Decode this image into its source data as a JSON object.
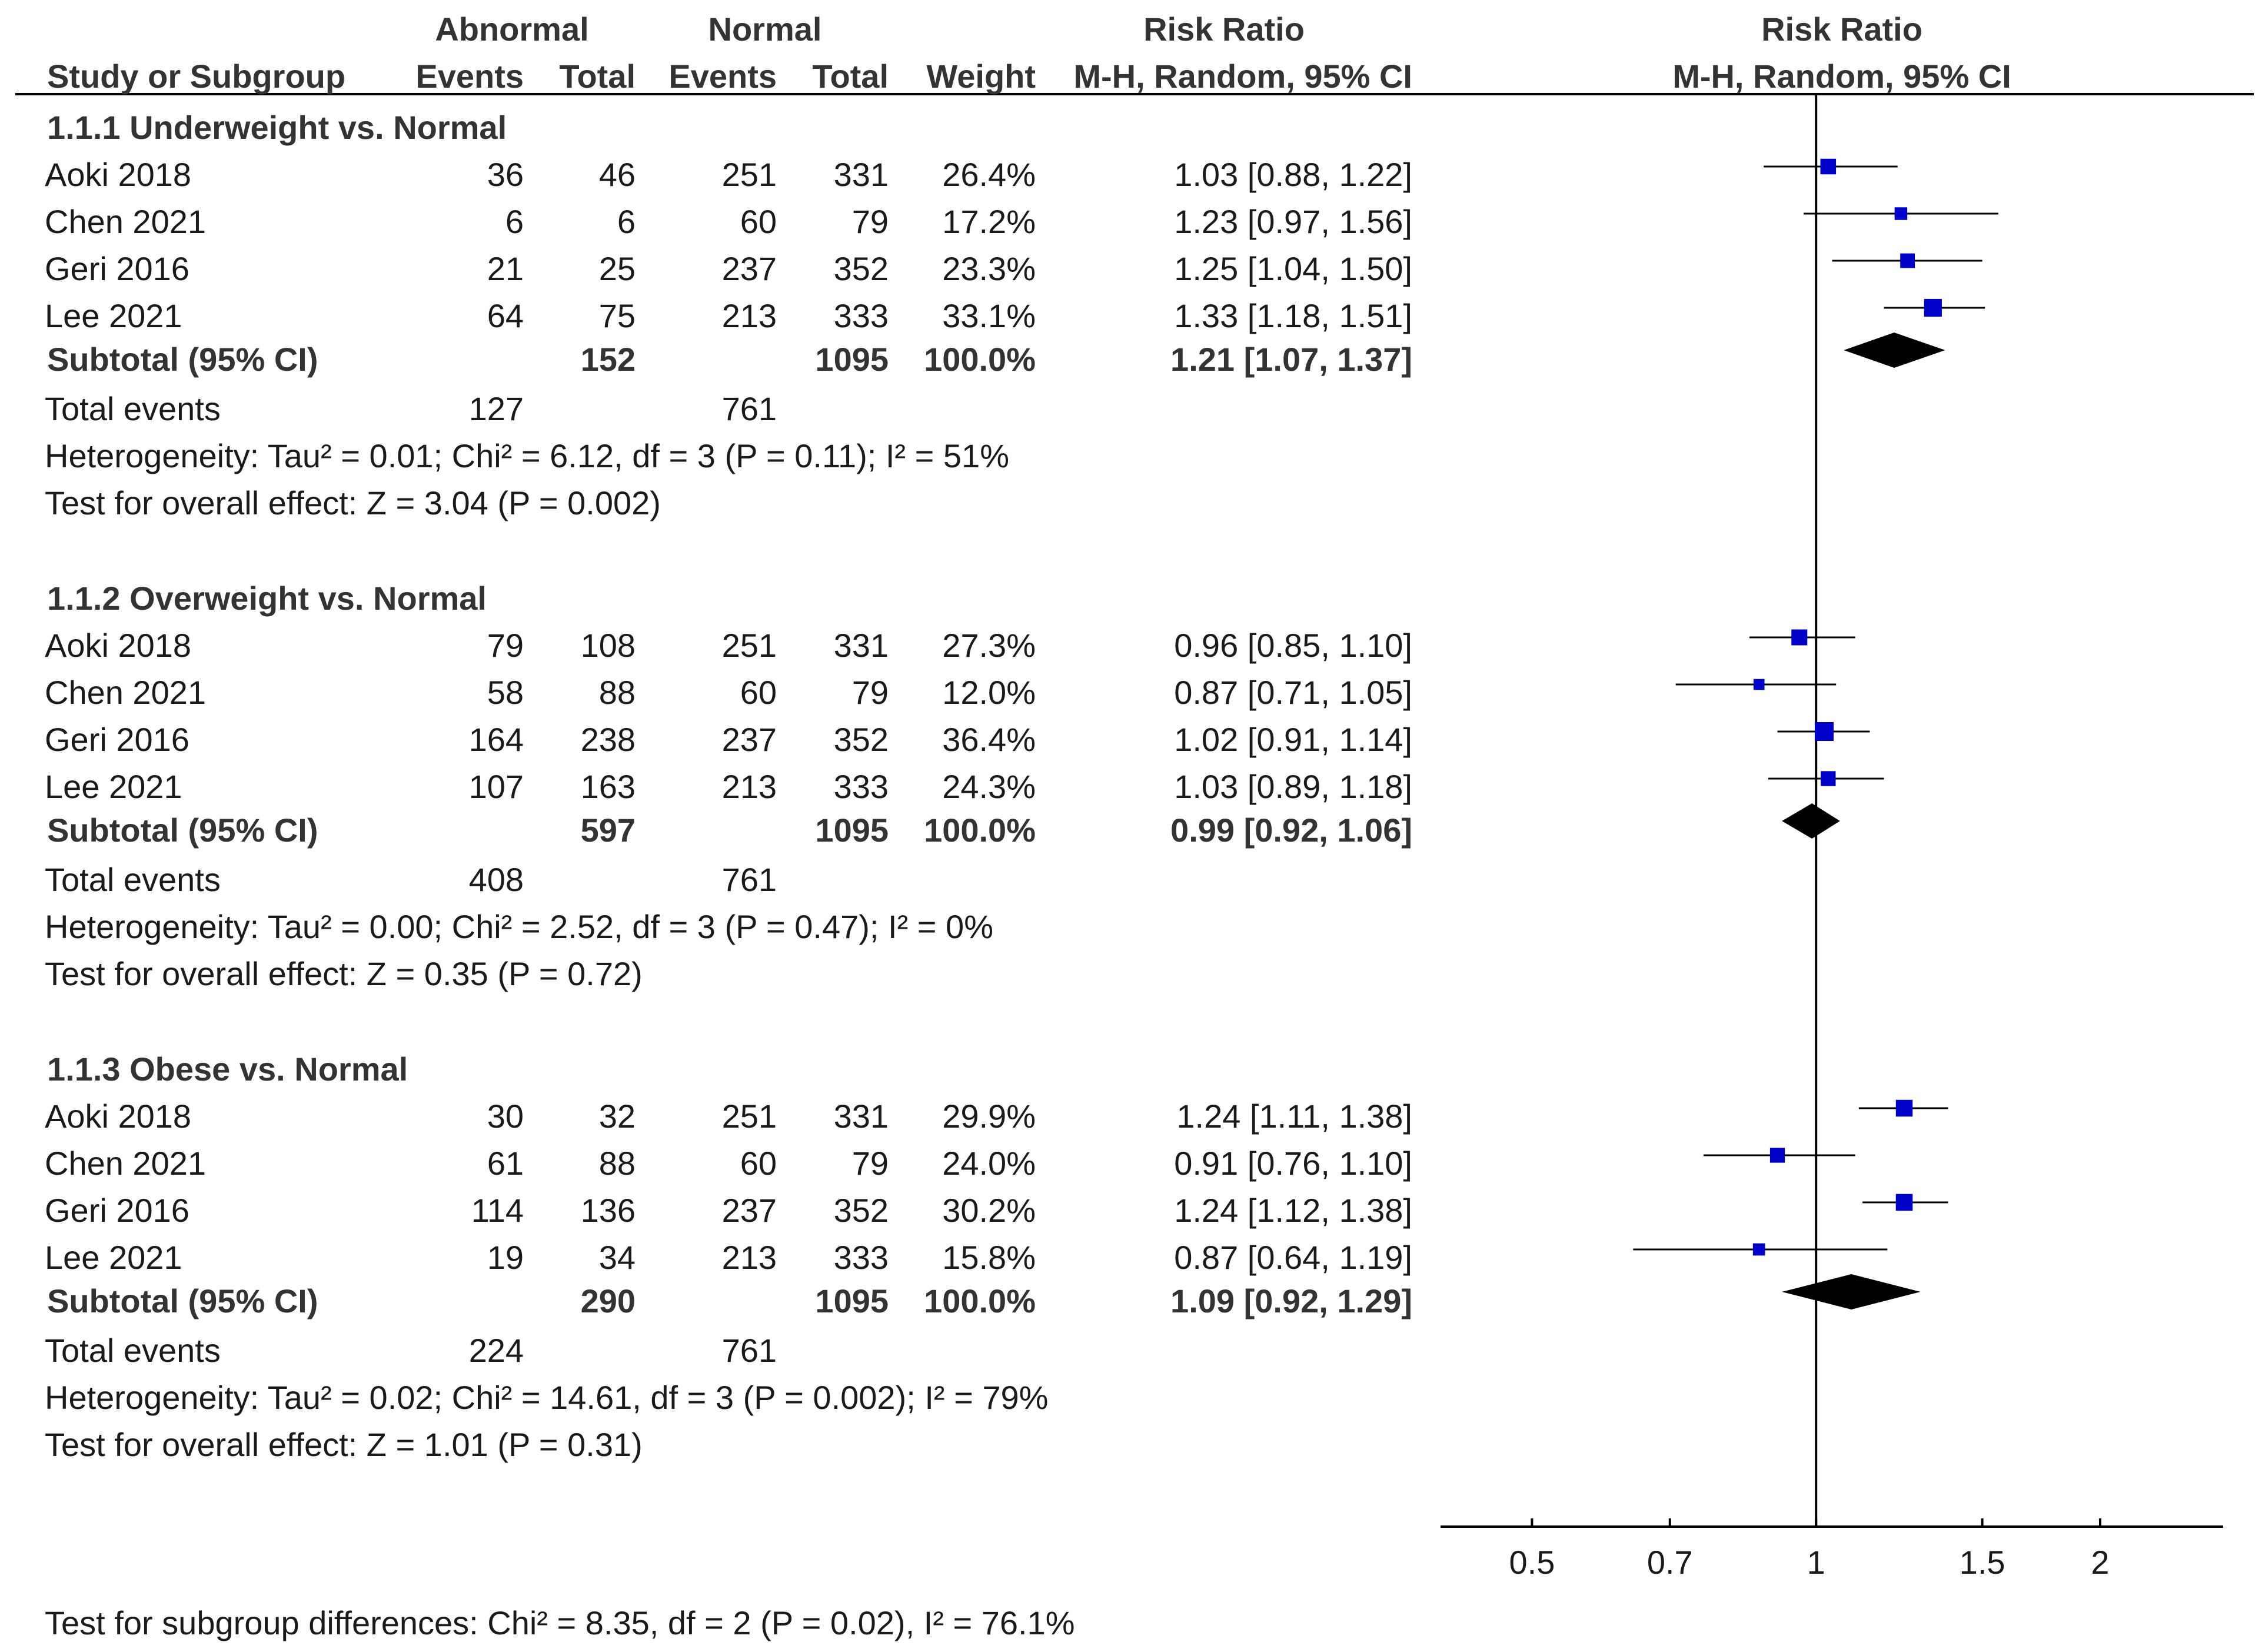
{
  "header": {
    "abnormal": "Abnormal",
    "normal": "Normal",
    "risk_ratio": "Risk Ratio",
    "study_or_subgroup": "Study or Subgroup",
    "events": "Events",
    "total": "Total",
    "weight": "Weight",
    "method": "M-H, Random, 95% CI",
    "plot_title": "Risk Ratio",
    "plot_method": "M-H, Random, 95% CI"
  },
  "groups": [
    {
      "title": "1.1.1 Underweight vs. Normal",
      "studies": [
        {
          "name": "Aoki 2018",
          "ab_events": "36",
          "ab_total": "46",
          "n_events": "251",
          "n_total": "331",
          "weight": "26.4%",
          "ci_text": "1.03 [0.88, 1.22]"
        },
        {
          "name": "Chen 2021",
          "ab_events": "6",
          "ab_total": "6",
          "n_events": "60",
          "n_total": "79",
          "weight": "17.2%",
          "ci_text": "1.23 [0.97, 1.56]"
        },
        {
          "name": "Geri 2016",
          "ab_events": "21",
          "ab_total": "25",
          "n_events": "237",
          "n_total": "352",
          "weight": "23.3%",
          "ci_text": "1.25 [1.04, 1.50]"
        },
        {
          "name": "Lee 2021",
          "ab_events": "64",
          "ab_total": "75",
          "n_events": "213",
          "n_total": "333",
          "weight": "33.1%",
          "ci_text": "1.33 [1.18, 1.51]"
        }
      ],
      "subtotal": {
        "label": "Subtotal (95% CI)",
        "ab_total": "152",
        "n_total": "1095",
        "weight": "100.0%",
        "ci_text": "1.21 [1.07, 1.37]"
      },
      "total_events": {
        "label": "Total events",
        "ab": "127",
        "n": "761"
      },
      "heterogeneity": "Heterogeneity: Tau² = 0.01; Chi² = 6.12, df = 3 (P = 0.11); I² = 51%",
      "overall": "Test for overall effect: Z = 3.04 (P = 0.002)"
    },
    {
      "title": "1.1.2 Overweight vs. Normal",
      "studies": [
        {
          "name": "Aoki 2018",
          "ab_events": "79",
          "ab_total": "108",
          "n_events": "251",
          "n_total": "331",
          "weight": "27.3%",
          "ci_text": "0.96 [0.85, 1.10]"
        },
        {
          "name": "Chen 2021",
          "ab_events": "58",
          "ab_total": "88",
          "n_events": "60",
          "n_total": "79",
          "weight": "12.0%",
          "ci_text": "0.87 [0.71, 1.05]"
        },
        {
          "name": "Geri 2016",
          "ab_events": "164",
          "ab_total": "238",
          "n_events": "237",
          "n_total": "352",
          "weight": "36.4%",
          "ci_text": "1.02 [0.91, 1.14]"
        },
        {
          "name": "Lee 2021",
          "ab_events": "107",
          "ab_total": "163",
          "n_events": "213",
          "n_total": "333",
          "weight": "24.3%",
          "ci_text": "1.03 [0.89, 1.18]"
        }
      ],
      "subtotal": {
        "label": "Subtotal (95% CI)",
        "ab_total": "597",
        "n_total": "1095",
        "weight": "100.0%",
        "ci_text": "0.99 [0.92, 1.06]"
      },
      "total_events": {
        "label": "Total events",
        "ab": "408",
        "n": "761"
      },
      "heterogeneity": "Heterogeneity: Tau² = 0.00; Chi² = 2.52, df = 3 (P = 0.47); I² = 0%",
      "overall": "Test for overall effect: Z = 0.35 (P = 0.72)"
    },
    {
      "title": "1.1.3 Obese vs. Normal",
      "studies": [
        {
          "name": "Aoki 2018",
          "ab_events": "30",
          "ab_total": "32",
          "n_events": "251",
          "n_total": "331",
          "weight": "29.9%",
          "ci_text": "1.24 [1.11, 1.38]"
        },
        {
          "name": "Chen 2021",
          "ab_events": "61",
          "ab_total": "88",
          "n_events": "60",
          "n_total": "79",
          "weight": "24.0%",
          "ci_text": "0.91 [0.76, 1.10]"
        },
        {
          "name": "Geri 2016",
          "ab_events": "114",
          "ab_total": "136",
          "n_events": "237",
          "n_total": "352",
          "weight": "30.2%",
          "ci_text": "1.24 [1.12, 1.38]"
        },
        {
          "name": "Lee 2021",
          "ab_events": "19",
          "ab_total": "34",
          "n_events": "213",
          "n_total": "333",
          "weight": "15.8%",
          "ci_text": "0.87 [0.64, 1.19]"
        }
      ],
      "subtotal": {
        "label": "Subtotal (95% CI)",
        "ab_total": "290",
        "n_total": "1095",
        "weight": "100.0%",
        "ci_text": "1.09 [0.92, 1.29]"
      },
      "total_events": {
        "label": "Total events",
        "ab": "224",
        "n": "761"
      },
      "heterogeneity": "Heterogeneity: Tau² = 0.02; Chi² = 14.61, df = 3 (P = 0.002); I² = 79%",
      "overall": "Test for overall effect: Z = 1.01 (P = 0.31)"
    }
  ],
  "footer": "Test for subgroup differences: Chi² = 8.35, df = 2 (P = 0.02), I² = 76.1%",
  "colors": {
    "study_marker": "#0000c8",
    "pooled_diamond": "#000000",
    "line": "#000000"
  },
  "chart_data": {
    "type": "forest",
    "title": "Risk Ratio",
    "subtitle": "M-H, Random, 95% CI",
    "x_scale": "log",
    "xlim": [
      0.4,
      2.7
    ],
    "xticks": [
      0.5,
      0.7,
      1,
      1.5,
      2
    ],
    "xtick_labels": [
      "0.5",
      "0.7",
      "1",
      "1.5",
      "2"
    ],
    "null_line": 1,
    "groups": [
      {
        "name": "1.1.1 Underweight vs. Normal",
        "studies": [
          {
            "name": "Aoki 2018",
            "rr": 1.03,
            "lo": 0.88,
            "hi": 1.22,
            "weight": 26.4
          },
          {
            "name": "Chen 2021",
            "rr": 1.23,
            "lo": 0.97,
            "hi": 1.56,
            "weight": 17.2
          },
          {
            "name": "Geri 2016",
            "rr": 1.25,
            "lo": 1.04,
            "hi": 1.5,
            "weight": 23.3
          },
          {
            "name": "Lee 2021",
            "rr": 1.33,
            "lo": 1.18,
            "hi": 1.51,
            "weight": 33.1
          }
        ],
        "pooled": {
          "rr": 1.21,
          "lo": 1.07,
          "hi": 1.37
        }
      },
      {
        "name": "1.1.2 Overweight vs. Normal",
        "studies": [
          {
            "name": "Aoki 2018",
            "rr": 0.96,
            "lo": 0.85,
            "hi": 1.1,
            "weight": 27.3
          },
          {
            "name": "Chen 2021",
            "rr": 0.87,
            "lo": 0.71,
            "hi": 1.05,
            "weight": 12.0
          },
          {
            "name": "Geri 2016",
            "rr": 1.02,
            "lo": 0.91,
            "hi": 1.14,
            "weight": 36.4
          },
          {
            "name": "Lee 2021",
            "rr": 1.03,
            "lo": 0.89,
            "hi": 1.18,
            "weight": 24.3
          }
        ],
        "pooled": {
          "rr": 0.99,
          "lo": 0.92,
          "hi": 1.06
        }
      },
      {
        "name": "1.1.3 Obese vs. Normal",
        "studies": [
          {
            "name": "Aoki 2018",
            "rr": 1.24,
            "lo": 1.11,
            "hi": 1.38,
            "weight": 29.9
          },
          {
            "name": "Chen 2021",
            "rr": 0.91,
            "lo": 0.76,
            "hi": 1.1,
            "weight": 24.0
          },
          {
            "name": "Geri 2016",
            "rr": 1.24,
            "lo": 1.12,
            "hi": 1.38,
            "weight": 30.2
          },
          {
            "name": "Lee 2021",
            "rr": 0.87,
            "lo": 0.64,
            "hi": 1.19,
            "weight": 15.8
          }
        ],
        "pooled": {
          "rr": 1.09,
          "lo": 0.92,
          "hi": 1.29
        }
      }
    ]
  }
}
